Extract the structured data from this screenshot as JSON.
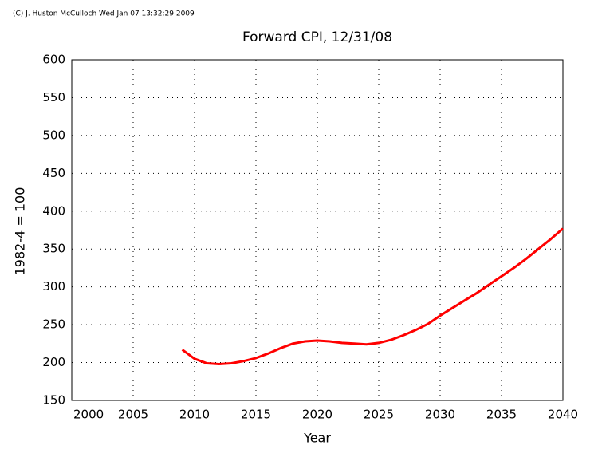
{
  "chart_data": {
    "type": "line",
    "credit": "(C) J. Huston McCulloch Wed Jan 07 13:32:29 2009",
    "title": "Forward CPI, 12/31/08",
    "x_label": "Year",
    "y_label": "1982-4 = 100",
    "x": [
      2009,
      2010,
      2011,
      2012,
      2013,
      2014,
      2015,
      2016,
      2017,
      2018,
      2019,
      2020,
      2021,
      2022,
      2023,
      2024,
      2025,
      2026,
      2027,
      2028,
      2029,
      2030,
      2031,
      2032,
      2033,
      2034,
      2035,
      2036,
      2037,
      2038,
      2039,
      2040
    ],
    "series": [
      {
        "name": "Forward CPI",
        "color": "#ff0000",
        "values": [
          217,
          205,
          199,
          198,
          199,
          202,
          206,
          212,
          219,
          225,
          228,
          229,
          228,
          226,
          225,
          224,
          226,
          230,
          236,
          243,
          251,
          262,
          272,
          282,
          292,
          303,
          314,
          325,
          337,
          350,
          363,
          377
        ]
      }
    ],
    "xlim": [
      2000,
      2040
    ],
    "xticks": [
      2000,
      2005,
      2010,
      2015,
      2020,
      2025,
      2030,
      2035,
      2040
    ],
    "ylim": [
      150,
      600
    ],
    "yticks": [
      150,
      200,
      250,
      300,
      350,
      400,
      450,
      500,
      550,
      600
    ],
    "grid": true
  }
}
